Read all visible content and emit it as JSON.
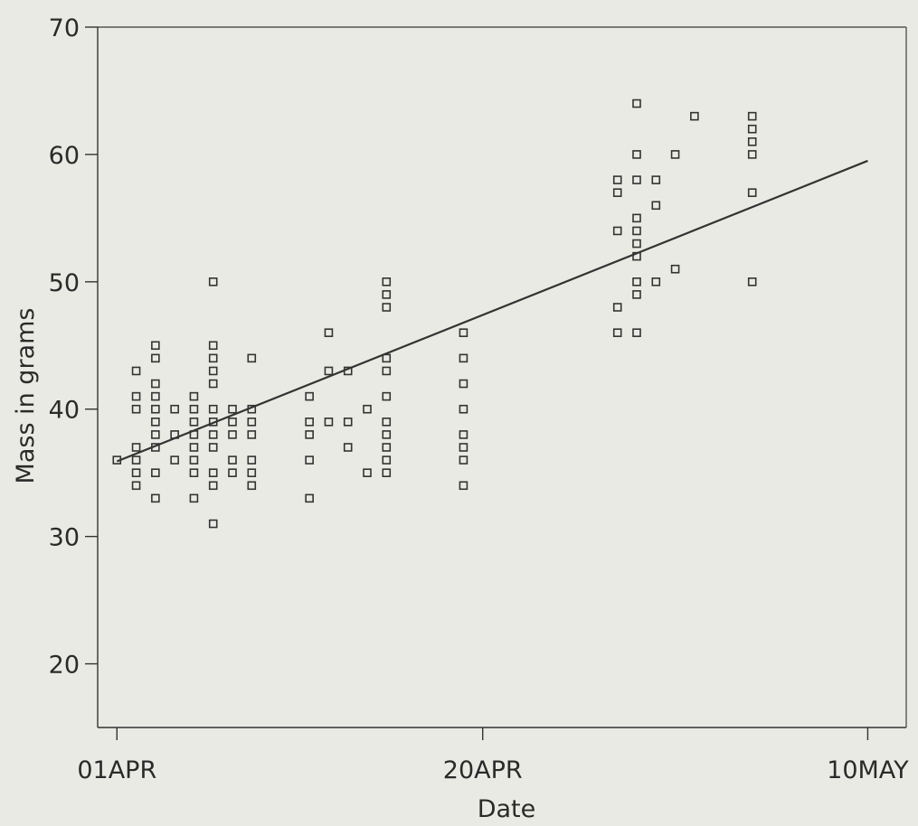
{
  "chart_data": {
    "type": "scatter",
    "xlabel": "Date",
    "ylabel": "Mass in grams",
    "ylim": [
      15,
      70
    ],
    "yticks": [
      20,
      30,
      40,
      50,
      60,
      70
    ],
    "xticks": [
      {
        "date": "1992-04-01",
        "label": "01APR"
      },
      {
        "date": "1992-04-20",
        "label": "20APR"
      },
      {
        "date": "1992-05-10",
        "label": "10MAY"
      }
    ],
    "xlim": [
      "1992-03-31",
      "1992-05-12"
    ],
    "grid": false,
    "legend": "none",
    "regression_line": {
      "start": {
        "x": "1992-04-01",
        "y": 35.9
      },
      "end": {
        "x": "1992-05-10",
        "y": 59.5
      }
    },
    "points": [
      {
        "x": "1992-04-01",
        "y": 36
      },
      {
        "x": "1992-04-02",
        "y": 43
      },
      {
        "x": "1992-04-02",
        "y": 41
      },
      {
        "x": "1992-04-02",
        "y": 40
      },
      {
        "x": "1992-04-02",
        "y": 37
      },
      {
        "x": "1992-04-02",
        "y": 36
      },
      {
        "x": "1992-04-02",
        "y": 35
      },
      {
        "x": "1992-04-02",
        "y": 34
      },
      {
        "x": "1992-04-03",
        "y": 45
      },
      {
        "x": "1992-04-03",
        "y": 44
      },
      {
        "x": "1992-04-03",
        "y": 42
      },
      {
        "x": "1992-04-03",
        "y": 41
      },
      {
        "x": "1992-04-03",
        "y": 40
      },
      {
        "x": "1992-04-03",
        "y": 39
      },
      {
        "x": "1992-04-03",
        "y": 38
      },
      {
        "x": "1992-04-03",
        "y": 37
      },
      {
        "x": "1992-04-03",
        "y": 35
      },
      {
        "x": "1992-04-03",
        "y": 33
      },
      {
        "x": "1992-04-04",
        "y": 40
      },
      {
        "x": "1992-04-04",
        "y": 38
      },
      {
        "x": "1992-04-04",
        "y": 36
      },
      {
        "x": "1992-04-05",
        "y": 41
      },
      {
        "x": "1992-04-05",
        "y": 40
      },
      {
        "x": "1992-04-05",
        "y": 39
      },
      {
        "x": "1992-04-05",
        "y": 38
      },
      {
        "x": "1992-04-05",
        "y": 37
      },
      {
        "x": "1992-04-05",
        "y": 36
      },
      {
        "x": "1992-04-05",
        "y": 35
      },
      {
        "x": "1992-04-05",
        "y": 33
      },
      {
        "x": "1992-04-06",
        "y": 50
      },
      {
        "x": "1992-04-06",
        "y": 45
      },
      {
        "x": "1992-04-06",
        "y": 44
      },
      {
        "x": "1992-04-06",
        "y": 43
      },
      {
        "x": "1992-04-06",
        "y": 42
      },
      {
        "x": "1992-04-06",
        "y": 40
      },
      {
        "x": "1992-04-06",
        "y": 39
      },
      {
        "x": "1992-04-06",
        "y": 38
      },
      {
        "x": "1992-04-06",
        "y": 37
      },
      {
        "x": "1992-04-06",
        "y": 35
      },
      {
        "x": "1992-04-06",
        "y": 34
      },
      {
        "x": "1992-04-06",
        "y": 31
      },
      {
        "x": "1992-04-07",
        "y": 40
      },
      {
        "x": "1992-04-07",
        "y": 39
      },
      {
        "x": "1992-04-07",
        "y": 38
      },
      {
        "x": "1992-04-07",
        "y": 36
      },
      {
        "x": "1992-04-07",
        "y": 35
      },
      {
        "x": "1992-04-08",
        "y": 44
      },
      {
        "x": "1992-04-08",
        "y": 40
      },
      {
        "x": "1992-04-08",
        "y": 39
      },
      {
        "x": "1992-04-08",
        "y": 38
      },
      {
        "x": "1992-04-08",
        "y": 36
      },
      {
        "x": "1992-04-08",
        "y": 35
      },
      {
        "x": "1992-04-08",
        "y": 34
      },
      {
        "x": "1992-04-11",
        "y": 41
      },
      {
        "x": "1992-04-11",
        "y": 39
      },
      {
        "x": "1992-04-11",
        "y": 38
      },
      {
        "x": "1992-04-11",
        "y": 36
      },
      {
        "x": "1992-04-11",
        "y": 33
      },
      {
        "x": "1992-04-12",
        "y": 46
      },
      {
        "x": "1992-04-12",
        "y": 43
      },
      {
        "x": "1992-04-12",
        "y": 39
      },
      {
        "x": "1992-04-13",
        "y": 43
      },
      {
        "x": "1992-04-13",
        "y": 39
      },
      {
        "x": "1992-04-13",
        "y": 37
      },
      {
        "x": "1992-04-14",
        "y": 40
      },
      {
        "x": "1992-04-14",
        "y": 35
      },
      {
        "x": "1992-04-15",
        "y": 50
      },
      {
        "x": "1992-04-15",
        "y": 49
      },
      {
        "x": "1992-04-15",
        "y": 48
      },
      {
        "x": "1992-04-15",
        "y": 44
      },
      {
        "x": "1992-04-15",
        "y": 43
      },
      {
        "x": "1992-04-15",
        "y": 41
      },
      {
        "x": "1992-04-15",
        "y": 39
      },
      {
        "x": "1992-04-15",
        "y": 38
      },
      {
        "x": "1992-04-15",
        "y": 37
      },
      {
        "x": "1992-04-15",
        "y": 36
      },
      {
        "x": "1992-04-15",
        "y": 35
      },
      {
        "x": "1992-04-19",
        "y": 46
      },
      {
        "x": "1992-04-19",
        "y": 44
      },
      {
        "x": "1992-04-19",
        "y": 42
      },
      {
        "x": "1992-04-19",
        "y": 40
      },
      {
        "x": "1992-04-19",
        "y": 38
      },
      {
        "x": "1992-04-19",
        "y": 37
      },
      {
        "x": "1992-04-19",
        "y": 36
      },
      {
        "x": "1992-04-19",
        "y": 34
      },
      {
        "x": "1992-04-27",
        "y": 58
      },
      {
        "x": "1992-04-27",
        "y": 57
      },
      {
        "x": "1992-04-27",
        "y": 54
      },
      {
        "x": "1992-04-27",
        "y": 48
      },
      {
        "x": "1992-04-27",
        "y": 46
      },
      {
        "x": "1992-04-28",
        "y": 64
      },
      {
        "x": "1992-04-28",
        "y": 60
      },
      {
        "x": "1992-04-28",
        "y": 58
      },
      {
        "x": "1992-04-28",
        "y": 55
      },
      {
        "x": "1992-04-28",
        "y": 54
      },
      {
        "x": "1992-04-28",
        "y": 53
      },
      {
        "x": "1992-04-28",
        "y": 52
      },
      {
        "x": "1992-04-28",
        "y": 50
      },
      {
        "x": "1992-04-28",
        "y": 49
      },
      {
        "x": "1992-04-28",
        "y": 46
      },
      {
        "x": "1992-04-29",
        "y": 58
      },
      {
        "x": "1992-04-29",
        "y": 56
      },
      {
        "x": "1992-04-29",
        "y": 50
      },
      {
        "x": "1992-04-30",
        "y": 60
      },
      {
        "x": "1992-04-30",
        "y": 51
      },
      {
        "x": "1992-05-01",
        "y": 63
      },
      {
        "x": "1992-05-04",
        "y": 63
      },
      {
        "x": "1992-05-04",
        "y": 62
      },
      {
        "x": "1992-05-04",
        "y": 61
      },
      {
        "x": "1992-05-04",
        "y": 60
      },
      {
        "x": "1992-05-04",
        "y": 57
      },
      {
        "x": "1992-05-04",
        "y": 50
      }
    ]
  }
}
